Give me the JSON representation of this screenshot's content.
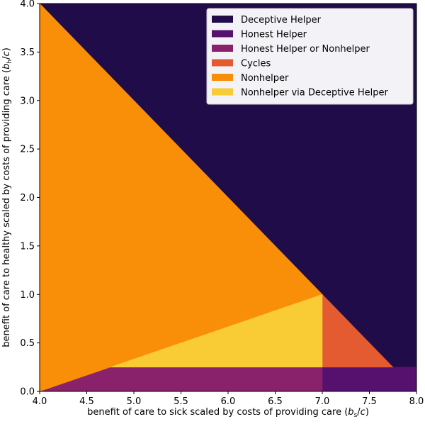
{
  "chart_data": {
    "type": "area",
    "title": "",
    "xlabel": "benefit of care to sick scaled by costs of providing care (b_s/c)",
    "ylabel": "benefit of care to healthy scaled by costs of providing care (b_h/c)",
    "xlabel_parts": {
      "pre": "benefit of care to sick scaled by costs of providing care (",
      "var": "b",
      "sub": "s",
      "post": "/",
      "var2": "c",
      "close": ")"
    },
    "ylabel_parts": {
      "pre": "benefit of care to healthy scaled by costs of providing care (",
      "var": "b",
      "sub": "h",
      "post": "/",
      "var2": "c",
      "close": ")"
    },
    "xlim": [
      4.0,
      8.0
    ],
    "ylim": [
      0.0,
      4.0
    ],
    "xticks": [
      "4.0",
      "4.5",
      "5.0",
      "5.5",
      "6.0",
      "6.5",
      "7.0",
      "7.5",
      "8.0"
    ],
    "yticks": [
      "0.0",
      "0.5",
      "1.0",
      "1.5",
      "2.0",
      "2.5",
      "3.0",
      "3.5",
      "4.0"
    ],
    "grid": false,
    "legend_position": "upper right",
    "regions": [
      {
        "name": "Deceptive Helper",
        "color": "#210c4a",
        "polygon": [
          [
            4.0,
            4.0
          ],
          [
            8.0,
            4.0
          ],
          [
            8.0,
            0.25
          ],
          [
            7.75,
            0.25
          ],
          [
            7.0,
            1.0
          ]
        ]
      },
      {
        "name": "Honest Helper",
        "color": "#56106e",
        "polygon": [
          [
            7.0,
            0.0
          ],
          [
            8.0,
            0.0
          ],
          [
            8.0,
            0.25
          ],
          [
            7.0,
            0.25
          ]
        ]
      },
      {
        "name": "Honest Helper or Nonhelper",
        "color": "#89226a",
        "polygon": [
          [
            4.0,
            0.0
          ],
          [
            7.0,
            0.0
          ],
          [
            7.0,
            0.25
          ],
          [
            4.75,
            0.25
          ]
        ]
      },
      {
        "name": "Cycles",
        "color": "#e45a31",
        "polygon": [
          [
            7.0,
            0.25
          ],
          [
            7.75,
            0.25
          ],
          [
            7.0,
            1.0
          ]
        ]
      },
      {
        "name": "Nonhelper",
        "color": "#f98e09",
        "polygon": [
          [
            4.0,
            0.0
          ],
          [
            7.0,
            1.0
          ],
          [
            4.0,
            4.0
          ]
        ]
      },
      {
        "name": "Nonhelper via Deceptive Helper",
        "color": "#f9cb35",
        "polygon": [
          [
            4.75,
            0.25
          ],
          [
            7.0,
            0.25
          ],
          [
            7.0,
            1.0
          ]
        ]
      }
    ],
    "legend": [
      {
        "label": "Deceptive Helper",
        "color": "#210c4a"
      },
      {
        "label": "Honest Helper",
        "color": "#56106e"
      },
      {
        "label": "Honest Helper or Nonhelper",
        "color": "#89226a"
      },
      {
        "label": "Cycles",
        "color": "#e45a31"
      },
      {
        "label": "Nonhelper",
        "color": "#f98e09"
      },
      {
        "label": "Nonhelper via Deceptive Helper",
        "color": "#f9cb35"
      }
    ]
  }
}
